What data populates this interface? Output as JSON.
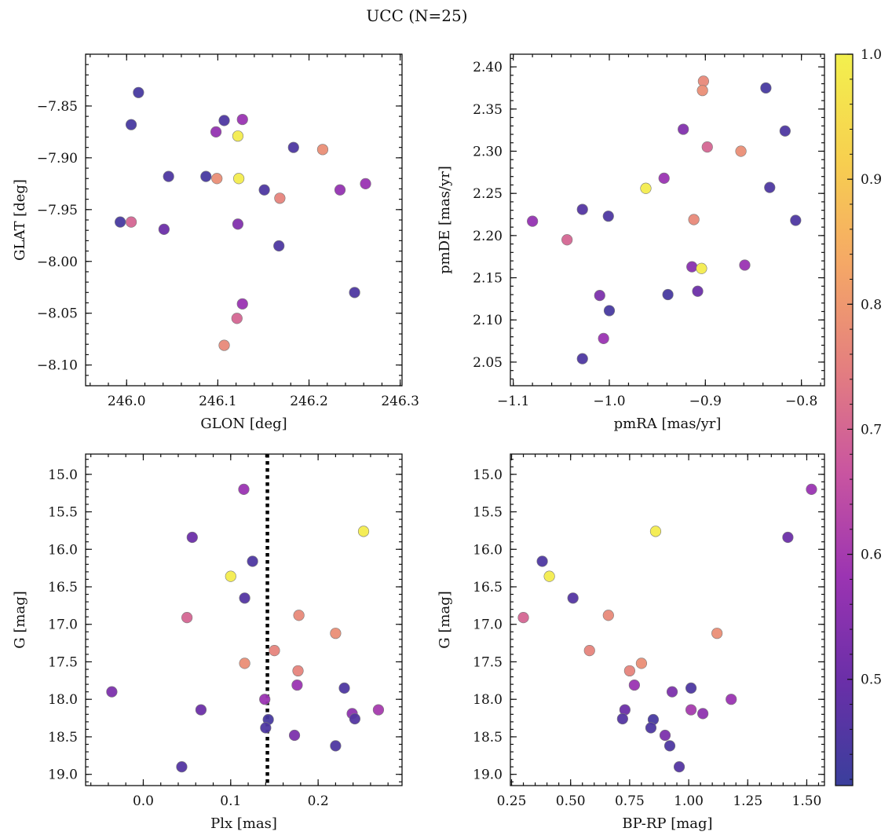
{
  "figure": {
    "title": "UCC (N=25)"
  },
  "colorbar": {
    "range": [
      0.415,
      1.0
    ],
    "ticks": [
      0.5,
      0.6,
      0.7,
      0.8,
      0.9,
      1.0
    ],
    "tick_labels": [
      "0.5",
      "0.6",
      "0.7",
      "0.8",
      "0.9",
      "1.0"
    ],
    "colormap": "plasma",
    "stops": [
      "#3a3f9c",
      "#6a2fa8",
      "#9b34b2",
      "#c955a0",
      "#e47f7f",
      "#f5a866",
      "#f7d04f",
      "#f3f04e"
    ]
  },
  "chart_data": [
    {
      "id": "glon-glat",
      "type": "scatter",
      "title": "",
      "xlabel": "GLON [deg]",
      "ylabel": "GLAT [deg]",
      "xlim": [
        245.955,
        246.302
      ],
      "ylim": [
        -8.12,
        -7.8
      ],
      "y_inverted": false,
      "xticks": [
        246.0,
        246.1,
        246.2,
        246.3
      ],
      "xtick_labels": [
        "246.0",
        "246.1",
        "246.2",
        "246.3"
      ],
      "yticks": [
        -7.85,
        -7.9,
        -7.95,
        -8.0,
        -8.05,
        -8.1
      ],
      "ytick_labels": [
        "−7.85",
        "−7.90",
        "−7.95",
        "−8.00",
        "−8.05",
        "−8.10"
      ],
      "points": [
        [
          246.013,
          -7.837,
          0.44
        ],
        [
          246.005,
          -7.868,
          0.44
        ],
        [
          246.107,
          -7.864,
          0.45
        ],
        [
          246.127,
          -7.863,
          0.58
        ],
        [
          246.098,
          -7.875,
          0.57
        ],
        [
          246.122,
          -7.879,
          0.99
        ],
        [
          246.183,
          -7.89,
          0.45
        ],
        [
          246.215,
          -7.892,
          0.78
        ],
        [
          246.046,
          -7.918,
          0.45
        ],
        [
          246.087,
          -7.918,
          0.44
        ],
        [
          246.099,
          -7.92,
          0.78
        ],
        [
          246.123,
          -7.92,
          0.99
        ],
        [
          246.262,
          -7.925,
          0.58
        ],
        [
          246.151,
          -7.931,
          0.45
        ],
        [
          246.234,
          -7.931,
          0.57
        ],
        [
          246.168,
          -7.939,
          0.76
        ],
        [
          245.993,
          -7.962,
          0.44
        ],
        [
          246.005,
          -7.962,
          0.7
        ],
        [
          246.122,
          -7.964,
          0.54
        ],
        [
          246.041,
          -7.969,
          0.5
        ],
        [
          246.167,
          -7.985,
          0.45
        ],
        [
          246.25,
          -8.03,
          0.45
        ],
        [
          246.127,
          -8.041,
          0.58
        ],
        [
          246.121,
          -8.055,
          0.7
        ],
        [
          246.107,
          -8.081,
          0.77
        ]
      ]
    },
    {
      "id": "pm",
      "type": "scatter",
      "title": "",
      "xlabel": "pmRA [mas/yr]",
      "ylabel": "pmDE [mas/yr]",
      "xlim": [
        -1.103,
        -0.776
      ],
      "ylim": [
        2.022,
        2.415
      ],
      "y_inverted": false,
      "xticks": [
        -1.1,
        -1.0,
        -0.9,
        -0.8
      ],
      "xtick_labels": [
        "−1.1",
        "−1.0",
        "−0.9",
        "−0.8"
      ],
      "yticks": [
        2.05,
        2.1,
        2.15,
        2.2,
        2.25,
        2.3,
        2.35,
        2.4
      ],
      "ytick_labels": [
        "2.05",
        "2.10",
        "2.15",
        "2.20",
        "2.25",
        "2.30",
        "2.35",
        "2.40"
      ],
      "points": [
        [
          -0.902,
          2.383,
          0.77
        ],
        [
          -0.903,
          2.372,
          0.78
        ],
        [
          -0.837,
          2.375,
          0.44
        ],
        [
          -0.923,
          2.326,
          0.54
        ],
        [
          -0.817,
          2.324,
          0.45
        ],
        [
          -0.898,
          2.305,
          0.7
        ],
        [
          -0.863,
          2.3,
          0.78
        ],
        [
          -0.943,
          2.268,
          0.58
        ],
        [
          -0.962,
          2.256,
          0.99
        ],
        [
          -0.833,
          2.257,
          0.45
        ],
        [
          -1.028,
          2.231,
          0.46
        ],
        [
          -1.001,
          2.223,
          0.45
        ],
        [
          -0.912,
          2.219,
          0.77
        ],
        [
          -1.08,
          2.217,
          0.57
        ],
        [
          -0.806,
          2.218,
          0.45
        ],
        [
          -1.044,
          2.195,
          0.7
        ],
        [
          -0.859,
          2.165,
          0.58
        ],
        [
          -0.914,
          2.163,
          0.55
        ],
        [
          -0.904,
          2.161,
          0.99
        ],
        [
          -0.939,
          2.13,
          0.44
        ],
        [
          -1.01,
          2.129,
          0.53
        ],
        [
          -0.908,
          2.134,
          0.5
        ],
        [
          -1.0,
          2.111,
          0.44
        ],
        [
          -1.006,
          2.078,
          0.58
        ],
        [
          -1.028,
          2.054,
          0.45
        ]
      ]
    },
    {
      "id": "plx-g",
      "type": "scatter",
      "title": "",
      "xlabel": "Plx [mas]",
      "ylabel": "G [mag]",
      "xlim": [
        -0.066,
        0.296
      ],
      "ylim": [
        19.15,
        14.73
      ],
      "y_inverted": true,
      "xticks": [
        0.0,
        0.1,
        0.2
      ],
      "xtick_labels": [
        "0.0",
        "0.1",
        "0.2"
      ],
      "yticks": [
        15.0,
        15.5,
        16.0,
        16.5,
        17.0,
        17.5,
        18.0,
        18.5,
        19.0
      ],
      "ytick_labels": [
        "15.0",
        "15.5",
        "16.0",
        "16.5",
        "17.0",
        "17.5",
        "18.0",
        "18.5",
        "19.0"
      ],
      "vline": {
        "x": 0.142,
        "style": "dotted"
      },
      "points": [
        [
          0.115,
          15.2,
          0.58
        ],
        [
          0.252,
          15.76,
          0.99
        ],
        [
          0.056,
          15.84,
          0.5
        ],
        [
          0.125,
          16.16,
          0.45
        ],
        [
          0.1,
          16.36,
          0.99
        ],
        [
          0.116,
          16.65,
          0.46
        ],
        [
          0.178,
          16.88,
          0.77
        ],
        [
          0.05,
          16.91,
          0.7
        ],
        [
          0.22,
          17.12,
          0.78
        ],
        [
          0.15,
          17.35,
          0.76
        ],
        [
          0.116,
          17.52,
          0.78
        ],
        [
          0.177,
          17.62,
          0.76
        ],
        [
          0.176,
          17.81,
          0.58
        ],
        [
          0.23,
          17.85,
          0.45
        ],
        [
          -0.036,
          17.9,
          0.53
        ],
        [
          0.139,
          18.0,
          0.58
        ],
        [
          0.066,
          18.14,
          0.5
        ],
        [
          0.269,
          18.14,
          0.6
        ],
        [
          0.239,
          18.19,
          0.56
        ],
        [
          0.242,
          18.26,
          0.46
        ],
        [
          0.143,
          18.27,
          0.44
        ],
        [
          0.14,
          18.38,
          0.45
        ],
        [
          0.173,
          18.48,
          0.53
        ],
        [
          0.22,
          18.62,
          0.45
        ],
        [
          0.044,
          18.9,
          0.46
        ]
      ]
    },
    {
      "id": "cmd",
      "type": "scatter",
      "title": "",
      "xlabel": "BP-RP [mag]",
      "ylabel": "G [mag]",
      "xlim": [
        0.245,
        1.575
      ],
      "ylim": [
        19.15,
        14.73
      ],
      "y_inverted": true,
      "xticks": [
        0.25,
        0.5,
        0.75,
        1.0,
        1.25,
        1.5
      ],
      "xtick_labels": [
        "0.25",
        "0.50",
        "0.75",
        "1.00",
        "1.25",
        "1.50"
      ],
      "yticks": [
        15.0,
        15.5,
        16.0,
        16.5,
        17.0,
        17.5,
        18.0,
        18.5,
        19.0
      ],
      "ytick_labels": [
        "15.0",
        "15.5",
        "16.0",
        "16.5",
        "17.0",
        "17.5",
        "18.0",
        "18.5",
        "19.0"
      ],
      "points": [
        [
          1.52,
          15.2,
          0.58
        ],
        [
          0.86,
          15.76,
          0.99
        ],
        [
          1.42,
          15.84,
          0.5
        ],
        [
          0.38,
          16.16,
          0.45
        ],
        [
          0.41,
          16.36,
          0.99
        ],
        [
          0.51,
          16.65,
          0.46
        ],
        [
          0.66,
          16.88,
          0.77
        ],
        [
          0.3,
          16.91,
          0.7
        ],
        [
          1.12,
          17.12,
          0.78
        ],
        [
          0.58,
          17.35,
          0.76
        ],
        [
          0.8,
          17.52,
          0.78
        ],
        [
          0.75,
          17.62,
          0.76
        ],
        [
          0.77,
          17.81,
          0.58
        ],
        [
          1.01,
          17.85,
          0.45
        ],
        [
          0.93,
          17.9,
          0.53
        ],
        [
          1.18,
          18.0,
          0.58
        ],
        [
          0.73,
          18.14,
          0.5
        ],
        [
          1.01,
          18.14,
          0.6
        ],
        [
          1.06,
          18.19,
          0.56
        ],
        [
          0.72,
          18.26,
          0.46
        ],
        [
          0.85,
          18.27,
          0.44
        ],
        [
          0.84,
          18.38,
          0.45
        ],
        [
          0.9,
          18.48,
          0.53
        ],
        [
          0.92,
          18.62,
          0.45
        ],
        [
          0.96,
          18.9,
          0.46
        ]
      ]
    }
  ]
}
